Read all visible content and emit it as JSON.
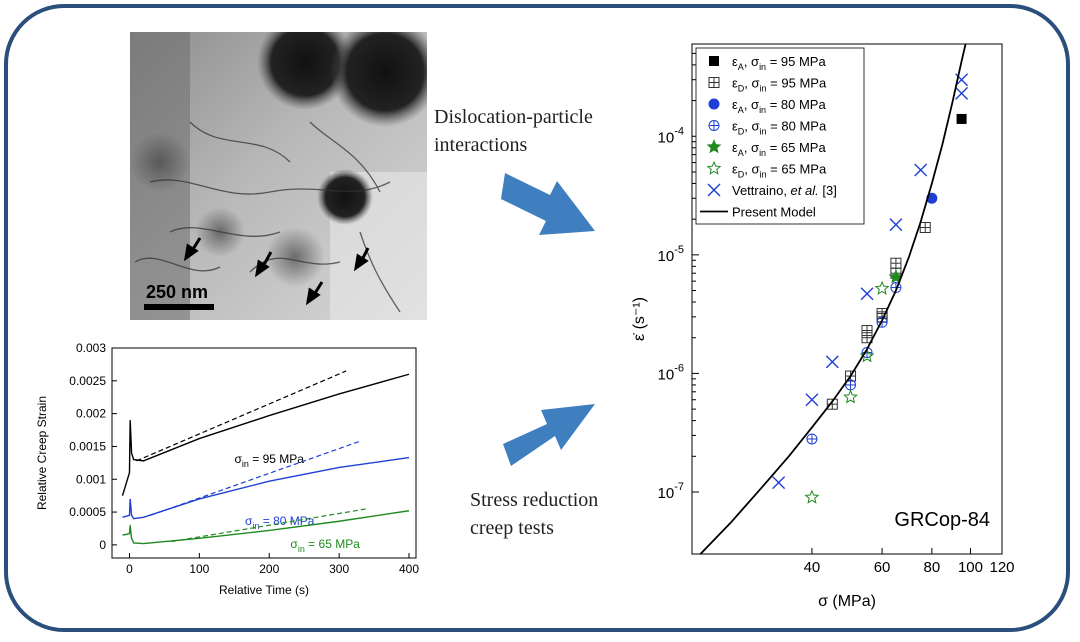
{
  "micrograph": {
    "scale_bar_label": "250 nm"
  },
  "labels": {
    "dislocation_line1": "Dislocation-particle",
    "dislocation_line2": "interactions",
    "stress_line1": "Stress reduction",
    "stress_line2": "creep tests"
  },
  "colors": {
    "frame": "#2b4f7c",
    "arrow": "#3f7fbf",
    "black": "#000000",
    "blue": "#1f3fd4",
    "green": "#1f8a1f"
  },
  "chart_data": [
    {
      "type": "line",
      "xlabel": "Relative Time (s)",
      "ylabel": "Relative Creep Strain",
      "xlim": [
        -25,
        410
      ],
      "ylim": [
        -0.0002,
        0.003
      ],
      "xticks": [
        "0",
        "100",
        "200",
        "300",
        "400"
      ],
      "yticks": [
        "0",
        "0.0005",
        "0.001",
        "0.0015",
        "0.002",
        "0.0025",
        "0.003"
      ],
      "series": [
        {
          "name": "σin = 95 MPa",
          "label_main": "σ",
          "label_sub": "in",
          "label_rest": " = 95 MPa",
          "color": "#000000",
          "x": [
            -10,
            0,
            1,
            3,
            6,
            20,
            100,
            200,
            300,
            400
          ],
          "y": [
            0.00075,
            0.0011,
            0.0019,
            0.0014,
            0.0013,
            0.00128,
            0.00162,
            0.00197,
            0.0023,
            0.0026
          ],
          "fit_x": [
            10,
            310
          ],
          "fit_y": [
            0.00128,
            0.00265
          ]
        },
        {
          "name": "σin = 80 MPa",
          "label_main": "σ",
          "label_sub": "in",
          "label_rest": " = 80 MPa",
          "color": "#1f3fd4",
          "x": [
            -10,
            0,
            1,
            3,
            6,
            20,
            100,
            200,
            300,
            400
          ],
          "y": [
            0.00042,
            0.00045,
            0.0007,
            0.00045,
            0.0004,
            0.00042,
            0.0007,
            0.00097,
            0.00118,
            0.00133
          ],
          "fit_x": [
            30,
            330
          ],
          "fit_y": [
            0.00045,
            0.00158
          ]
        },
        {
          "name": "σin = 65 MPa",
          "label_main": "σ",
          "label_sub": "in",
          "label_rest": " = 65 MPa",
          "color": "#1f8a1f",
          "x": [
            -10,
            0,
            1,
            3,
            6,
            20,
            100,
            200,
            300,
            400
          ],
          "y": [
            0.00015,
            0.00017,
            0.0003,
            0.0001,
            3e-05,
            2e-05,
            0.0001,
            0.00022,
            0.00036,
            0.00052
          ],
          "fit_x": [
            60,
            340
          ],
          "fit_y": [
            5e-05,
            0.00055
          ]
        }
      ]
    },
    {
      "type": "scatter",
      "scale": "log-log",
      "xlabel": "σ (MPa)",
      "ylabel": "ε̇ (s⁻¹)",
      "xlim": [
        20,
        120
      ],
      "ylim": [
        3e-08,
        0.0006
      ],
      "xticks": [
        {
          "v": 40,
          "label": "40"
        },
        {
          "v": 60,
          "label": "60"
        },
        {
          "v": 80,
          "label": "80"
        },
        {
          "v": 100,
          "label": "100"
        },
        {
          "v": 120,
          "label": "120"
        }
      ],
      "yticks": [
        {
          "v": 1e-07,
          "base": "10",
          "exp": "-7"
        },
        {
          "v": 1e-06,
          "base": "10",
          "exp": "-6"
        },
        {
          "v": 1e-05,
          "base": "10",
          "exp": "-5"
        },
        {
          "v": 0.0001,
          "base": "10",
          "exp": "-4"
        }
      ],
      "annotation": "GRCop-84",
      "legend_position": "top-left",
      "series": [
        {
          "name": "εA, σin = 95 MPa",
          "main": "ε",
          "sub1": "A",
          "mid": ", σ",
          "sub2": "in",
          "rest": " = 95 MPa",
          "marker": "square-filled",
          "color": "#000000",
          "x": [
            95
          ],
          "y": [
            0.00014
          ]
        },
        {
          "name": "εD, σin = 95 MPa",
          "main": "ε",
          "sub1": "D",
          "mid": ", σ",
          "sub2": "in",
          "rest": " = 95 MPa",
          "marker": "square-plus",
          "color": "#333333",
          "x": [
            45,
            50,
            55,
            55,
            60,
            60,
            65,
            65,
            77
          ],
          "y": [
            5.5e-07,
            9.5e-07,
            2e-06,
            2.3e-06,
            3e-06,
            3.2e-06,
            7e-06,
            8.5e-06,
            1.7e-05
          ]
        },
        {
          "name": "εA, σin = 80 MPa",
          "main": "ε",
          "sub1": "A",
          "mid": ", σ",
          "sub2": "in",
          "rest": " = 80 MPa",
          "marker": "circle-filled",
          "color": "#1f3fd4",
          "x": [
            80
          ],
          "y": [
            3e-05
          ]
        },
        {
          "name": "εD, σin = 80 MPa",
          "main": "ε",
          "sub1": "D",
          "mid": ", σ",
          "sub2": "in",
          "rest": " = 80 MPa",
          "marker": "circle-plus",
          "color": "#1f3fd4",
          "x": [
            40,
            50,
            55,
            60,
            65
          ],
          "y": [
            2.8e-07,
            8e-07,
            1.5e-06,
            2.7e-06,
            5.3e-06
          ]
        },
        {
          "name": "εA, σin = 65 MPa",
          "main": "ε",
          "sub1": "A",
          "mid": ", σ",
          "sub2": "in",
          "rest": " = 65 MPa",
          "marker": "star-filled",
          "color": "#1f8a1f",
          "x": [
            65
          ],
          "y": [
            6.5e-06
          ]
        },
        {
          "name": "εD, σin = 65 MPa",
          "main": "ε",
          "sub1": "D",
          "mid": ", σ",
          "sub2": "in",
          "rest": " = 65 MPa",
          "marker": "star-open",
          "color": "#1f8a1f",
          "x": [
            40,
            50,
            55,
            60
          ],
          "y": [
            9e-08,
            6.3e-07,
            1.4e-06,
            5.2e-06
          ]
        },
        {
          "name": "Vettraino, et al. [3]",
          "main": "Vettraino, ",
          "italic": "et al.",
          "rest": " [3]",
          "marker": "x",
          "color": "#1f3fd4",
          "x": [
            33,
            40,
            45,
            55,
            65,
            75,
            95,
            95
          ],
          "y": [
            1.2e-07,
            6e-07,
            1.25e-06,
            4.7e-06,
            1.8e-05,
            5.2e-05,
            0.00023,
            0.0003
          ]
        },
        {
          "name": "Present Model",
          "main": "Present Model",
          "marker": "line",
          "color": "#000000",
          "x": [
            21,
            25,
            30,
            35,
            40,
            45,
            50,
            55,
            60,
            65,
            70,
            75,
            80,
            85,
            90,
            95,
            100
          ],
          "y": [
            3e-08,
            5.5e-08,
            1.1e-07,
            2e-07,
            3.5e-07,
            5.8e-07,
            9.5e-07,
            1.6e-06,
            2.8e-06,
            5e-06,
            9.5e-06,
            1.9e-05,
            4e-05,
            8.5e-05,
            0.00019,
            0.00043,
            0.0009
          ]
        }
      ]
    }
  ]
}
